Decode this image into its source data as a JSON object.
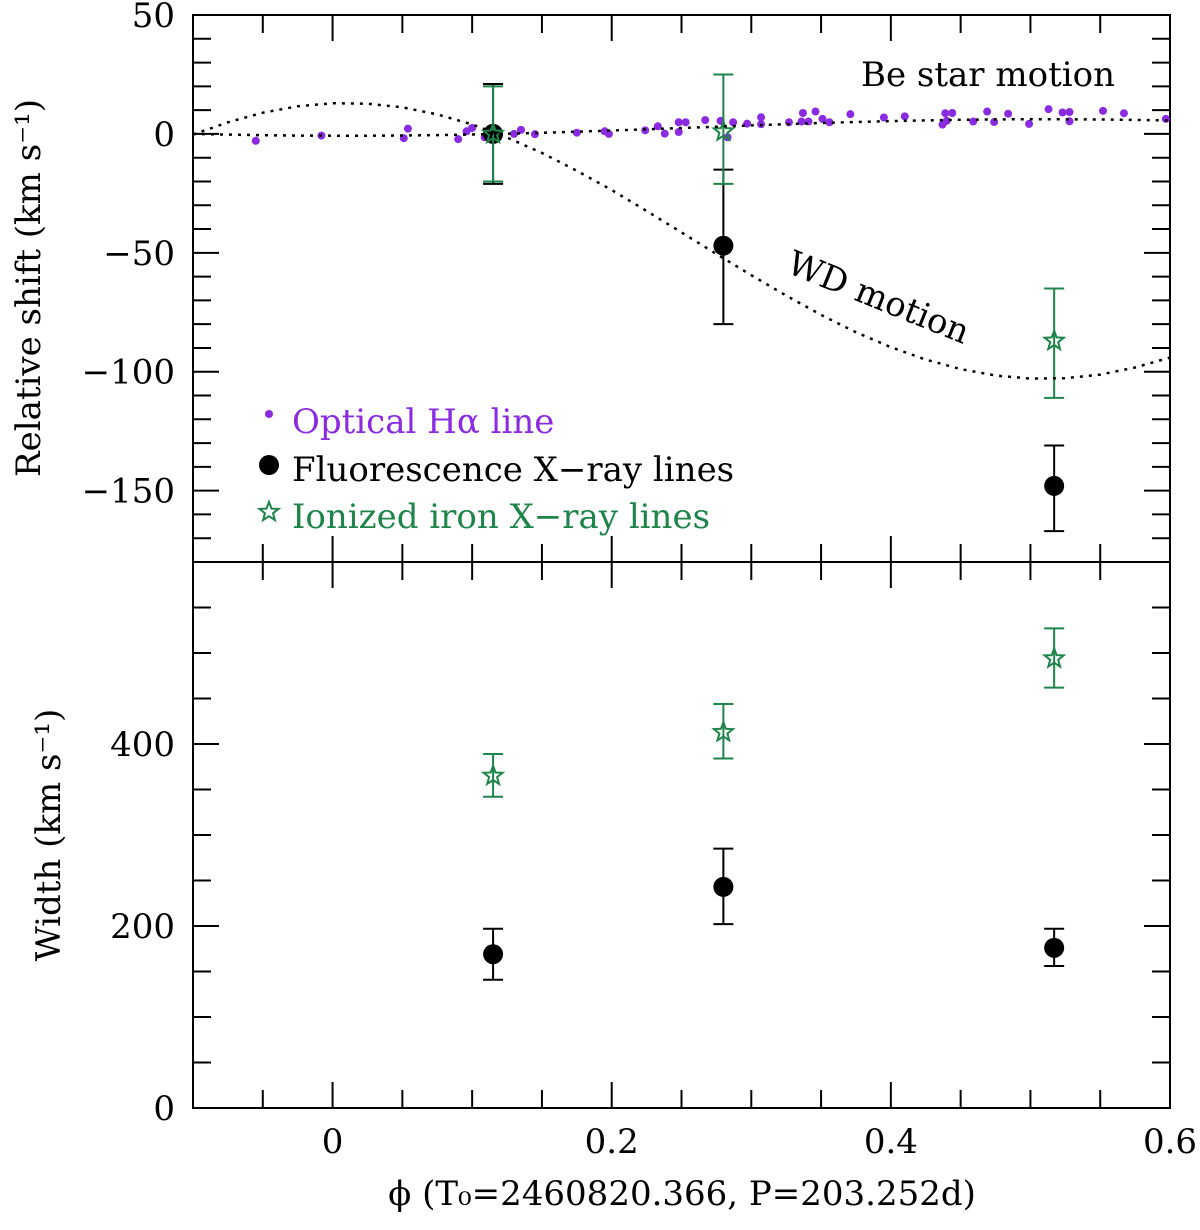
{
  "chart_data": [
    {
      "type": "scatter",
      "panel": "top",
      "ylabel": "Relative shift (km s⁻¹)",
      "xlim": [
        -0.1,
        0.6
      ],
      "ylim": [
        -180,
        50
      ],
      "yticks": [
        -150,
        -100,
        -50,
        0,
        50
      ],
      "ytick_labels": [
        "−150",
        "−100",
        "−50",
        "0",
        "50"
      ],
      "grid": false,
      "legend_placement": "lower-left",
      "legend": [
        {
          "label": "Optical Hα line",
          "color": "#8a2be2",
          "marker": "small-dot"
        },
        {
          "label": "Fluorescence X−ray lines",
          "color": "#000000",
          "marker": "filled-circle"
        },
        {
          "label": "Ionized iron X−ray lines",
          "color": "#1e8449",
          "marker": "open-star"
        }
      ],
      "annotations": [
        "Be star motion",
        "WD motion"
      ],
      "series": [
        {
          "name": "Optical Hα line",
          "color": "#8a2be2",
          "marker": "small-dot",
          "points": [
            [
              -0.055,
              -2.9
            ],
            [
              -0.008,
              -0.7
            ],
            [
              0.051,
              -1.8
            ],
            [
              0.054,
              2.2
            ],
            [
              0.09,
              -2.2
            ],
            [
              0.096,
              1.1
            ],
            [
              0.1,
              2.5
            ],
            [
              0.109,
              -1.4
            ],
            [
              0.13,
              0.0
            ],
            [
              0.135,
              1.7
            ],
            [
              0.145,
              -0.1
            ],
            [
              0.175,
              0.5
            ],
            [
              0.195,
              1.1
            ],
            [
              0.198,
              0.0
            ],
            [
              0.224,
              1.5
            ],
            [
              0.233,
              3.2
            ],
            [
              0.238,
              0.1
            ],
            [
              0.248,
              4.9
            ],
            [
              0.248,
              0.8
            ],
            [
              0.253,
              4.9
            ],
            [
              0.267,
              5.8
            ],
            [
              0.278,
              5.5
            ],
            [
              0.283,
              -1.4
            ],
            [
              0.287,
              4.9
            ],
            [
              0.297,
              4.3
            ],
            [
              0.307,
              7.0
            ],
            [
              0.307,
              4.1
            ],
            [
              0.327,
              4.9
            ],
            [
              0.336,
              5.2
            ],
            [
              0.337,
              8.8
            ],
            [
              0.341,
              5.2
            ],
            [
              0.346,
              9.4
            ],
            [
              0.351,
              6.3
            ],
            [
              0.356,
              4.9
            ],
            [
              0.371,
              8.3
            ],
            [
              0.395,
              6.9
            ],
            [
              0.41,
              7.4
            ],
            [
              0.437,
              3.9
            ],
            [
              0.439,
              8.7
            ],
            [
              0.44,
              5.5
            ],
            [
              0.444,
              8.8
            ],
            [
              0.459,
              5.2
            ],
            [
              0.469,
              9.4
            ],
            [
              0.474,
              5.0
            ],
            [
              0.484,
              8.5
            ],
            [
              0.499,
              4.2
            ],
            [
              0.513,
              10.4
            ],
            [
              0.523,
              9.0
            ],
            [
              0.528,
              9.2
            ],
            [
              0.528,
              5.3
            ],
            [
              0.552,
              9.7
            ],
            [
              0.567,
              8.7
            ],
            [
              0.597,
              6.3
            ]
          ]
        },
        {
          "name": "Fluorescence X−ray lines",
          "color": "#000000",
          "marker": "filled-circle",
          "points": [
            [
              0.115,
              0,
              -21,
              21
            ],
            [
              0.28,
              -47,
              -80,
              -15
            ],
            [
              0.517,
              -148,
              -167,
              -131
            ]
          ]
        },
        {
          "name": "Ionized iron X−ray lines",
          "color": "#1e8449",
          "marker": "open-star",
          "points": [
            [
              0.115,
              0,
              -20,
              20
            ],
            [
              0.28,
              1,
              -21,
              25
            ],
            [
              0.517,
              -87,
              -111,
              -65
            ]
          ]
        },
        {
          "name": "Be star motion",
          "style": "dotted",
          "x": [
            -0.1,
            -0.075,
            -0.05,
            -0.025,
            0,
            0.025,
            0.05,
            0.075,
            0.1,
            0.125,
            0.15,
            0.175,
            0.2,
            0.225,
            0.25,
            0.275,
            0.3,
            0.325,
            0.35,
            0.375,
            0.4,
            0.425,
            0.45,
            0.475,
            0.5,
            0.525,
            0.55,
            0.575,
            0.6
          ],
          "y": [
            0.02,
            -0.29,
            -0.53,
            -0.7,
            -0.77,
            -0.76,
            -0.67,
            -0.49,
            -0.24,
            0.09,
            0.48,
            0.93,
            1.42,
            1.94,
            2.48,
            3.03,
            3.56,
            4.08,
            4.57,
            5.0,
            5.38,
            5.69,
            5.93,
            6.1,
            6.17,
            6.16,
            6.07,
            5.89,
            5.64
          ]
        },
        {
          "name": "WD motion",
          "style": "dotted",
          "x": [
            -0.1,
            -0.075,
            -0.05,
            -0.025,
            0,
            0.025,
            0.05,
            0.075,
            0.1,
            0.125,
            0.15,
            0.175,
            0.2,
            0.225,
            0.25,
            0.275,
            0.3,
            0.325,
            0.35,
            0.375,
            0.4,
            0.425,
            0.45,
            0.475,
            0.5,
            0.525,
            0.55,
            0.575,
            0.6
          ],
          "y": [
            -0.3,
            4.9,
            8.9,
            11.6,
            12.9,
            12.7,
            11.2,
            8.2,
            4.0,
            -1.5,
            -8.0,
            -15.5,
            -23.6,
            -32.4,
            -41.4,
            -50.5,
            -59.4,
            -68.0,
            -76.1,
            -83.4,
            -89.7,
            -94.9,
            -98.9,
            -101.6,
            -102.9,
            -102.7,
            -101.2,
            -98.2,
            -94.0
          ]
        }
      ]
    },
    {
      "type": "scatter",
      "panel": "bottom",
      "ylabel": "Width (km s⁻¹)",
      "xlabel": "ϕ (T₀=2460820.366, P=203.252d)",
      "xlim": [
        -0.1,
        0.6
      ],
      "ylim": [
        0,
        600
      ],
      "xticks": [
        0,
        0.2,
        0.4,
        0.6
      ],
      "xtick_labels": [
        "0",
        "0.2",
        "0.4",
        "0.6"
      ],
      "yticks": [
        0,
        200,
        400
      ],
      "ytick_labels": [
        "0",
        "200",
        "400"
      ],
      "grid": false,
      "series": [
        {
          "name": "Ionized iron X−ray lines",
          "color": "#1e8449",
          "marker": "open-star",
          "points": [
            [
              0.115,
              365,
              342,
              389
            ],
            [
              0.28,
              413,
              384,
              444
            ],
            [
              0.517,
              494,
              462,
              527
            ]
          ]
        },
        {
          "name": "Fluorescence X−ray lines",
          "color": "#000000",
          "marker": "filled-circle",
          "points": [
            [
              0.115,
              169,
              141,
              197
            ],
            [
              0.28,
              243,
              202,
              285
            ],
            [
              0.517,
              176,
              156,
              197
            ]
          ]
        }
      ]
    }
  ]
}
